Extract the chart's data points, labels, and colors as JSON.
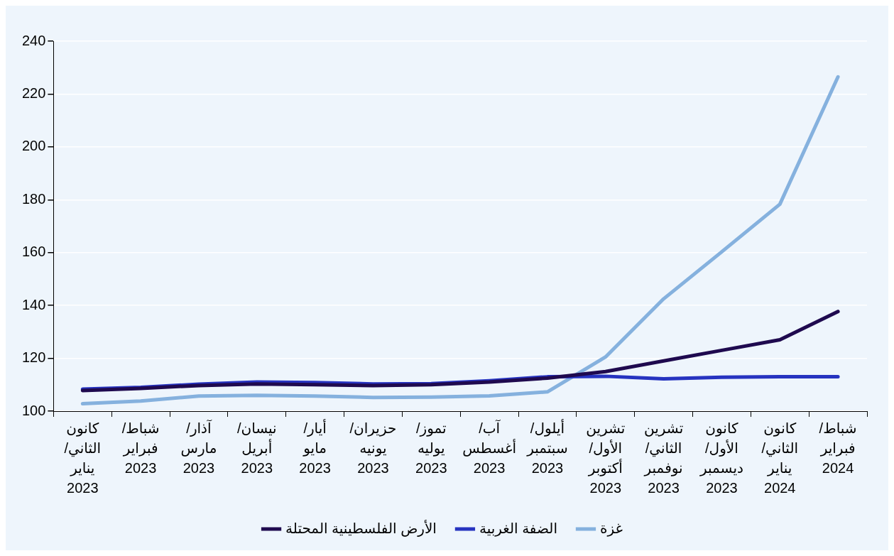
{
  "chart_data": {
    "type": "line",
    "categories": [
      "كانون الثاني/ يناير 2023",
      "شباط/ فبراير 2023",
      "آذار/ مارس 2023",
      "نيسان/ أبريل 2023",
      "أيار/ مايو 2023",
      "حزيران/ يونيه 2023",
      "تموز/ يوليه 2023",
      "آب/ أغسطس 2023",
      "أيلول/ سبتمبر 2023",
      "تشرين الأول/ أكتوبر 2023",
      "تشرين الثاني/ نوفمبر 2023",
      "كانون الأول/ ديسمبر 2023",
      "كانون الثاني/ يناير 2024",
      "شباط/ فبراير 2024"
    ],
    "series": [
      {
        "name": "الأرض الفلسطينية المحتلة",
        "color": "#1f0a4f",
        "values": [
          107.8,
          108.6,
          109.7,
          110.3,
          110,
          109.7,
          110,
          111,
          112.5,
          115,
          119,
          123,
          127,
          137.7
        ]
      },
      {
        "name": "الضفة الغربية",
        "color": "#2633c0",
        "values": [
          108.3,
          109,
          110.2,
          111,
          110.8,
          110.3,
          110.4,
          111.5,
          113,
          113.2,
          112.2,
          112.8,
          113,
          113
        ]
      },
      {
        "name": "غزة",
        "color": "#85b1de",
        "values": [
          102.8,
          103.8,
          105.7,
          106,
          105.7,
          105.2,
          105.3,
          105.8,
          107.3,
          120.5,
          142.5,
          160.3,
          178.3,
          226.5
        ]
      }
    ],
    "ylim": [
      100,
      240
    ],
    "yticks": [
      100,
      120,
      140,
      160,
      180,
      200,
      220,
      240
    ],
    "grid": "y",
    "legend": "bottom",
    "marker": "none",
    "line_style": "solid"
  }
}
